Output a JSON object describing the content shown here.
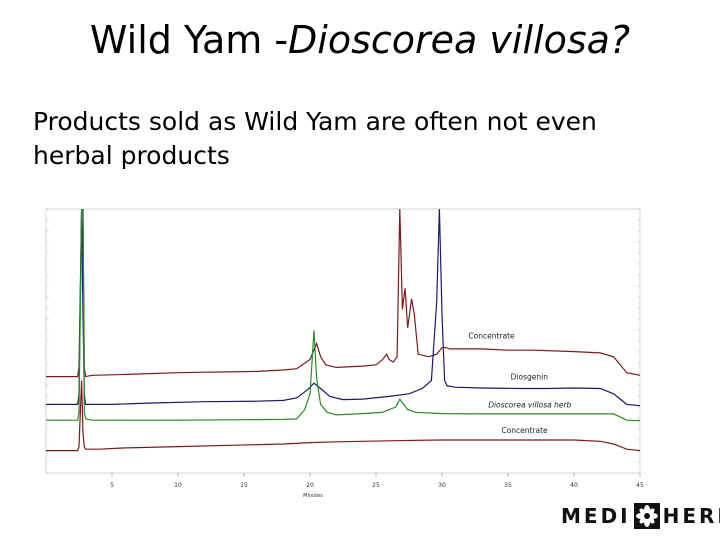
{
  "title": {
    "main": "Wild Yam -",
    "italic": "Dioscorea villosa?"
  },
  "subtitle": "Products sold as Wild Yam are often not even herbal products",
  "logo": {
    "left": "MEDI",
    "right": "HERB",
    "mark": "®"
  },
  "chart_data": {
    "type": "line",
    "xlabel": "Minutes",
    "xlim": [
      0,
      45
    ],
    "ylim": [
      0,
      1
    ],
    "xticks": [
      5,
      10,
      15,
      20,
      25,
      30,
      35,
      40,
      45
    ],
    "xtick_labels": [
      "5",
      "10",
      "15",
      "20",
      "25",
      "30",
      "35",
      "40",
      "45"
    ],
    "grid": false,
    "series": [
      {
        "name": "Concentrate",
        "color": "#7a1a1a",
        "x": [
          0,
          2.4,
          2.5,
          2.7,
          2.8,
          2.9,
          3,
          3.5,
          5,
          7,
          10,
          12,
          14,
          16,
          18,
          19,
          20,
          20.5,
          20.8,
          21.2,
          22,
          24,
          25,
          25.5,
          25.8,
          26,
          26.3,
          26.6,
          26.8,
          27,
          27.2,
          27.4,
          27.7,
          27.9,
          28.2,
          29,
          29.6,
          30,
          30.3,
          30.6,
          31,
          33,
          35,
          37,
          40,
          42,
          43,
          44,
          45
        ],
        "y": [
          0.365,
          0.365,
          0.4,
          1.0,
          1.0,
          0.4,
          0.365,
          0.37,
          0.372,
          0.375,
          0.38,
          0.382,
          0.383,
          0.385,
          0.39,
          0.395,
          0.43,
          0.49,
          0.44,
          0.41,
          0.4,
          0.405,
          0.41,
          0.43,
          0.45,
          0.43,
          0.42,
          0.44,
          1.0,
          0.62,
          0.7,
          0.55,
          0.66,
          0.6,
          0.45,
          0.44,
          0.45,
          0.475,
          0.475,
          0.47,
          0.47,
          0.47,
          0.465,
          0.465,
          0.46,
          0.455,
          0.44,
          0.38,
          0.37
        ]
      },
      {
        "name": "Diosgenin",
        "color": "#1a1a6e",
        "x": [
          0,
          2.4,
          2.5,
          2.7,
          2.8,
          2.9,
          3,
          5,
          8,
          12,
          16,
          18,
          19,
          19.8,
          20.3,
          20.8,
          21.5,
          22.5,
          24,
          26,
          27.5,
          28.5,
          29.2,
          29.6,
          29.8,
          30,
          30.2,
          30.4,
          31,
          33,
          36,
          38,
          40,
          42,
          43,
          44,
          45
        ],
        "y": [
          0.26,
          0.26,
          0.3,
          1.0,
          0.6,
          0.3,
          0.26,
          0.26,
          0.265,
          0.27,
          0.272,
          0.275,
          0.285,
          0.315,
          0.34,
          0.32,
          0.29,
          0.278,
          0.28,
          0.29,
          0.3,
          0.32,
          0.35,
          0.65,
          1.0,
          0.6,
          0.35,
          0.33,
          0.325,
          0.322,
          0.32,
          0.32,
          0.322,
          0.32,
          0.3,
          0.26,
          0.255
        ]
      },
      {
        "name": "Dioscorea villosa herb",
        "color": "#2a8a2a",
        "x": [
          0,
          2.4,
          2.5,
          2.7,
          2.8,
          2.9,
          3,
          3.5,
          5,
          10,
          15,
          18,
          19,
          19.6,
          20,
          20.3,
          20.5,
          20.8,
          21.3,
          22,
          24,
          25.5,
          26.5,
          26.8,
          27.1,
          27.4,
          28,
          30,
          33,
          36,
          40,
          43,
          44,
          45
        ],
        "y": [
          0.2,
          0.2,
          0.23,
          1.0,
          1.0,
          0.23,
          0.205,
          0.2,
          0.2,
          0.2,
          0.202,
          0.203,
          0.205,
          0.24,
          0.3,
          0.54,
          0.36,
          0.26,
          0.23,
          0.22,
          0.225,
          0.23,
          0.25,
          0.28,
          0.26,
          0.24,
          0.23,
          0.225,
          0.224,
          0.224,
          0.224,
          0.224,
          0.2,
          0.198
        ]
      },
      {
        "name": "Concentrate",
        "color": "#7a1a1a",
        "x": [
          0,
          2.4,
          2.5,
          2.7,
          2.8,
          2.9,
          3,
          4,
          6,
          10,
          14,
          18,
          20,
          22,
          24,
          26,
          28,
          30,
          32,
          35,
          38,
          40,
          42,
          43,
          44,
          45
        ],
        "y": [
          0.085,
          0.085,
          0.1,
          0.35,
          0.15,
          0.1,
          0.09,
          0.09,
          0.095,
          0.1,
          0.105,
          0.11,
          0.115,
          0.118,
          0.12,
          0.122,
          0.124,
          0.125,
          0.125,
          0.125,
          0.125,
          0.125,
          0.12,
          0.11,
          0.09,
          0.085
        ]
      }
    ]
  }
}
